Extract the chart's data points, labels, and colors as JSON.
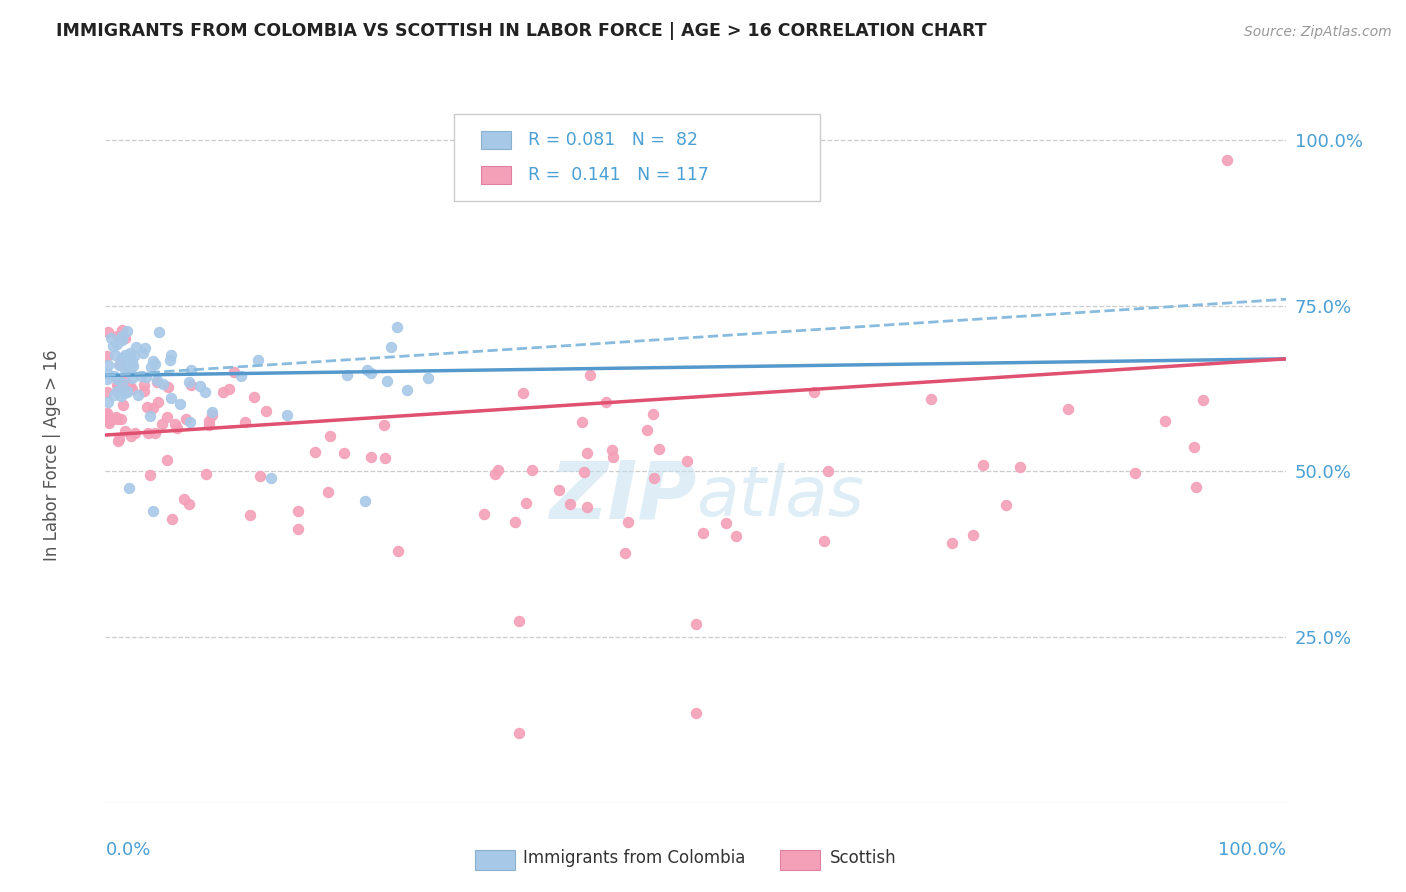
{
  "title": "IMMIGRANTS FROM COLOMBIA VS SCOTTISH IN LABOR FORCE | AGE > 16 CORRELATION CHART",
  "source": "Source: ZipAtlas.com",
  "ylabel": "In Labor Force | Age > 16",
  "color_colombia": "#a8c8e8",
  "color_scottish": "#f4a0b8",
  "color_trend_colombia_solid": "#5599cc",
  "color_trend_colombia_dashed": "#88bbdd",
  "color_trend_scottish": "#e05070",
  "color_axis_labels": "#4a9fd4",
  "color_grid": "#cccccc",
  "watermark_color": "#c5dff0",
  "background_color": "#ffffff"
}
